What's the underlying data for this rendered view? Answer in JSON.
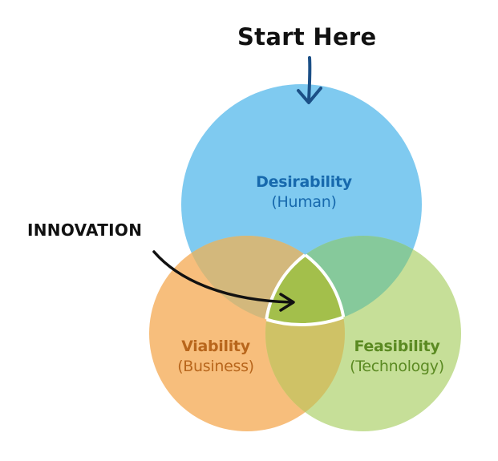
{
  "header": {
    "start_label": "Start Here"
  },
  "callout": {
    "innovation_label": "INNOVATION"
  },
  "circles": {
    "desirability": {
      "title": "Desirability",
      "subtitle": "(Human)"
    },
    "viability": {
      "title": "Viability",
      "subtitle": "(Business)"
    },
    "feasibility": {
      "title": "Feasibility",
      "subtitle": "(Technology)"
    }
  },
  "colors": {
    "desirability_fill": "#7fcaf0",
    "viability_fill": "#f7be7c",
    "feasibility_fill": "#c6df98",
    "desirability_viability": "#d3b87c",
    "desirability_feasibility": "#86c99b",
    "viability_feasibility": "#cfc266",
    "center": "#a3bf4b",
    "arrow_start": "#1b4f86",
    "arrow_innovation": "#111111"
  }
}
